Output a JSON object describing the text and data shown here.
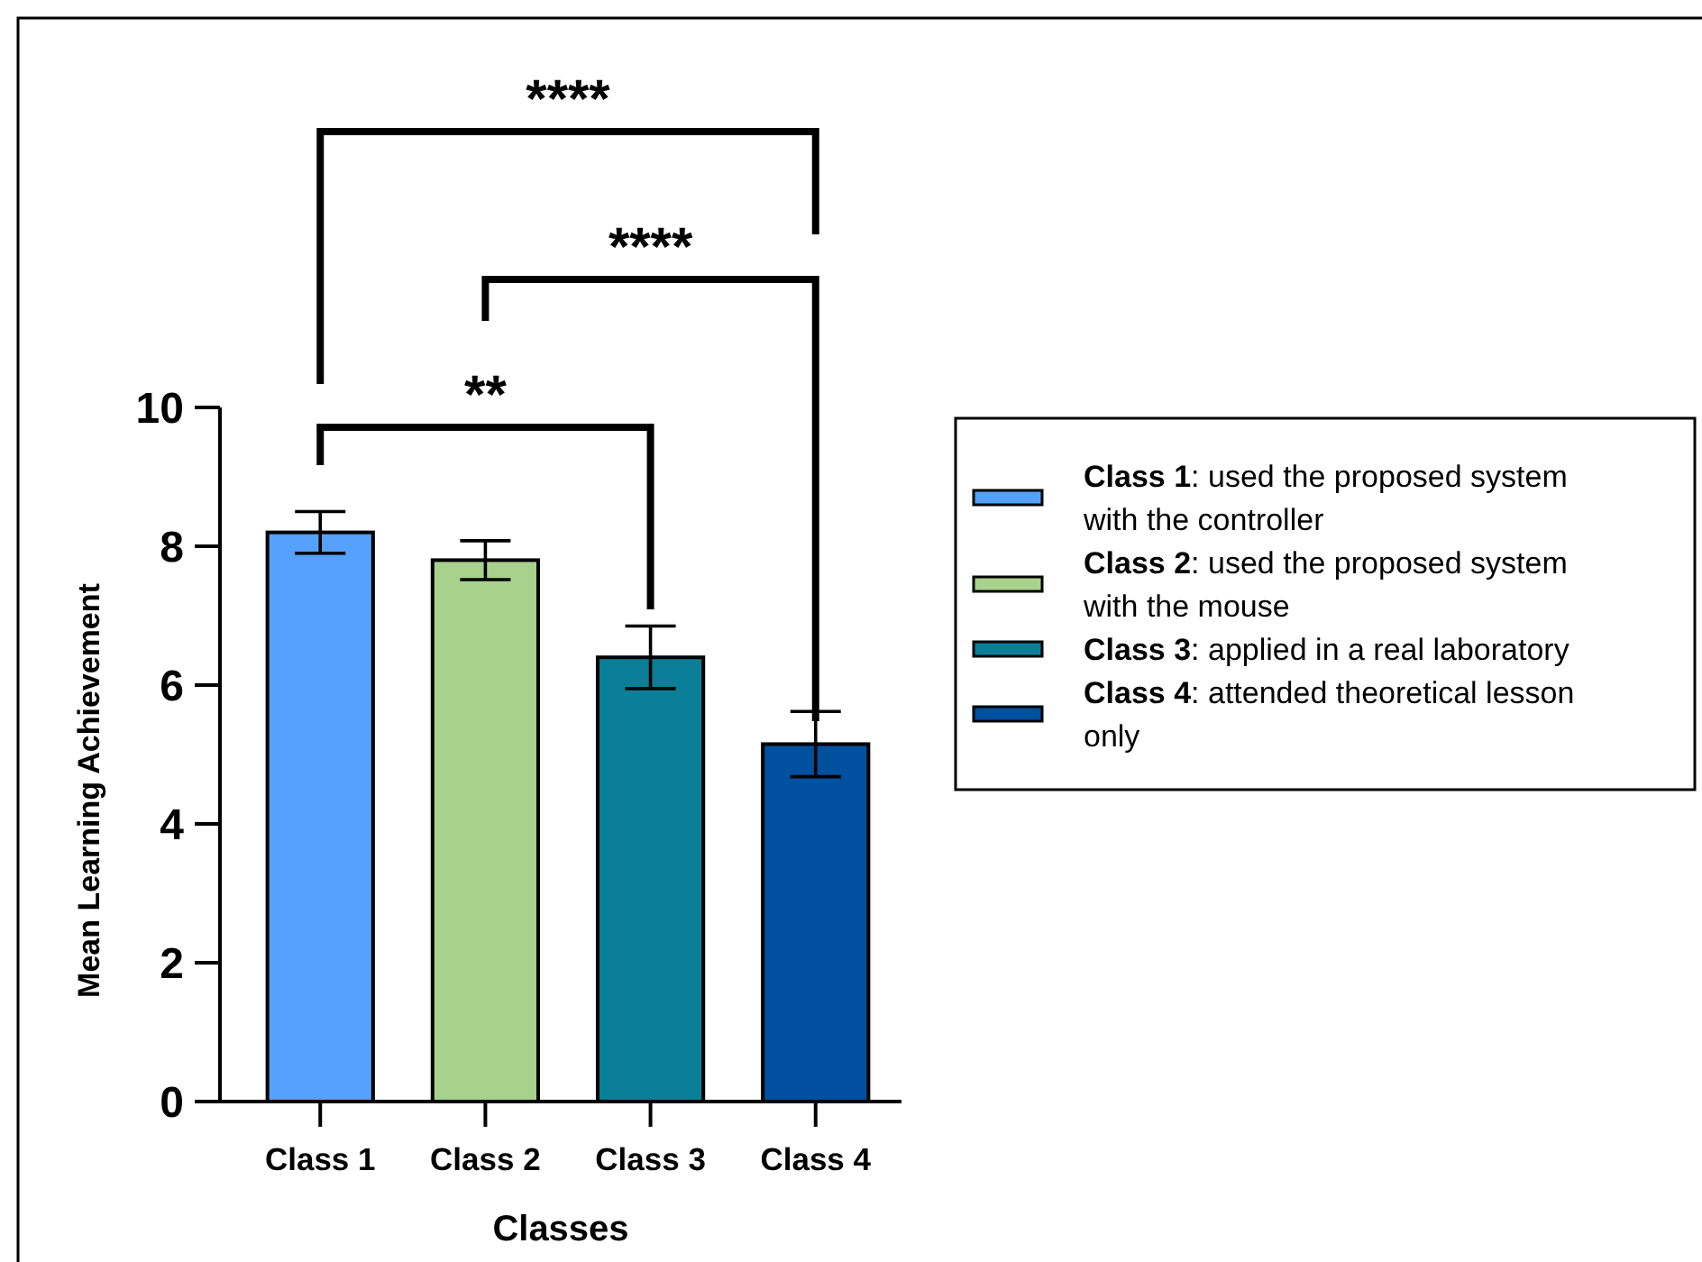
{
  "chart_data": {
    "type": "bar",
    "xlabel": "Classes",
    "ylabel": "Mean Learning Achievement",
    "categories": [
      "Class 1",
      "Class 2",
      "Class 3",
      "Class 4"
    ],
    "series": [
      {
        "name": "Class 1: used the proposed system with the controller",
        "color": "#55a1fc",
        "values": [
          8.2,
          null,
          null,
          null
        ],
        "errors": [
          0.3,
          null,
          null,
          null
        ]
      },
      {
        "name": "Class 2: used the proposed system with the mouse",
        "color": "#a9d18e",
        "values": [
          null,
          7.8,
          null,
          null
        ],
        "errors": [
          null,
          0.28,
          null,
          null
        ]
      },
      {
        "name": "Class 3: applied in a real laboratory",
        "color": "#0a7f97",
        "values": [
          null,
          null,
          6.4,
          null
        ],
        "errors": [
          null,
          null,
          0.45,
          null
        ]
      },
      {
        "name": "Class 4: attended theoretical lesson only",
        "color": "#0050a0",
        "values": [
          null,
          null,
          null,
          5.15
        ],
        "errors": [
          null,
          null,
          null,
          0.47
        ]
      }
    ],
    "ylim": [
      0,
      10
    ],
    "yticks": [
      0,
      2,
      4,
      6,
      8,
      10
    ],
    "grid": false,
    "legend": "right",
    "annotations": [
      "****",
      "****",
      "**"
    ]
  }
}
